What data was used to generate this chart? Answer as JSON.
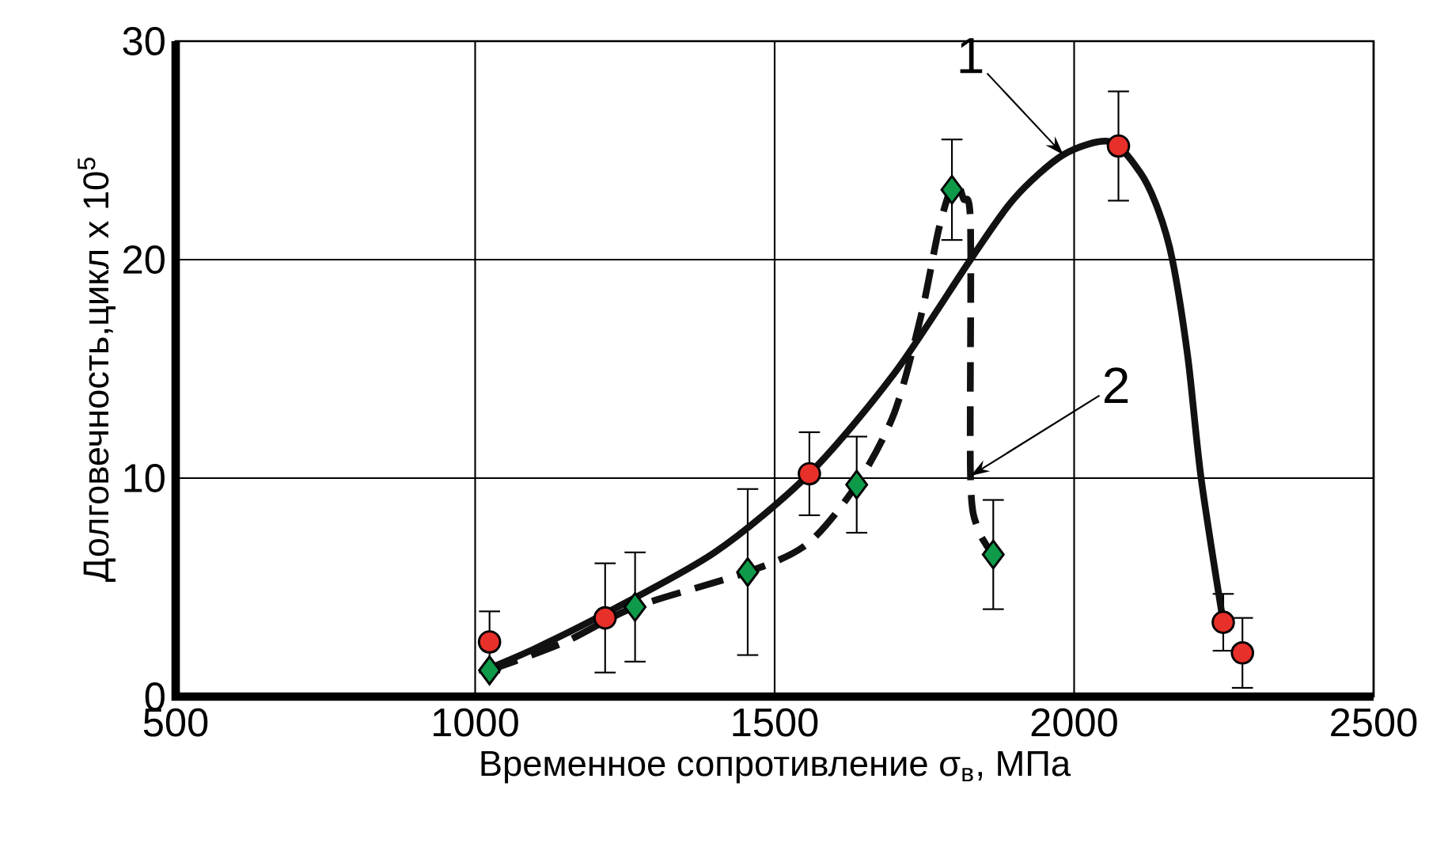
{
  "chart_data": {
    "type": "scatter",
    "xlabel": "Временное сопротивление σ$_{в}$, МПа",
    "ylabel": "Долговечность,цикл х 10$^{5}$",
    "xlim": [
      500,
      2500
    ],
    "ylim": [
      0,
      30
    ],
    "xticks": [
      500,
      1000,
      1500,
      2000,
      2500
    ],
    "yticks": [
      0,
      10,
      20,
      30
    ],
    "grid": true,
    "series": [
      {
        "marker": "circle",
        "color": "#e8302a",
        "x": [
          1024,
          1217,
          1558,
          2074,
          2249,
          2281
        ],
        "values": [
          2.5,
          3.6,
          10.2,
          25.2,
          3.4,
          2.0
        ],
        "errors": [
          1.4,
          2.5,
          1.9,
          2.5,
          1.3,
          1.6
        ]
      },
      {
        "marker": "diamond",
        "color": "#0f9a4a",
        "x": [
          1024,
          1267,
          1455,
          1637,
          1796,
          1865
        ],
        "values": [
          1.2,
          4.1,
          5.7,
          9.7,
          23.2,
          6.5
        ],
        "errors": [
          null,
          2.5,
          3.8,
          2.2,
          2.3,
          2.5
        ]
      },
      {
        "type": "line",
        "marker": "none",
        "line_style": "solid",
        "color": "#111111",
        "x": [
          1024,
          1100,
          1217,
          1400,
          1558,
          1700,
          1827,
          1900,
          1982,
          2060,
          2110,
          2140,
          2164,
          2190,
          2212,
          2249
        ],
        "values": [
          1.3,
          2.2,
          3.8,
          6.6,
          10.2,
          14.8,
          20.0,
          22.8,
          24.8,
          25.4,
          24.0,
          22.3,
          20.0,
          15.5,
          10.0,
          3.4
        ]
      },
      {
        "type": "line",
        "marker": "none",
        "line_style": "dashed",
        "color": "#111111",
        "x": [
          1024,
          1150,
          1267,
          1455,
          1555,
          1637,
          1700,
          1745,
          1775,
          1800,
          1815,
          1827,
          1827,
          1839,
          1865
        ],
        "values": [
          1.2,
          2.5,
          4.1,
          5.7,
          7.0,
          9.7,
          13.0,
          17.5,
          21.5,
          23.6,
          22.8,
          21.6,
          10.1,
          7.7,
          6.5
        ]
      }
    ],
    "annotations": [
      {
        "text": "1",
        "x": 1982,
        "y": 24.8
      },
      {
        "text": "2",
        "x": 1827,
        "y": 10.1
      }
    ]
  }
}
